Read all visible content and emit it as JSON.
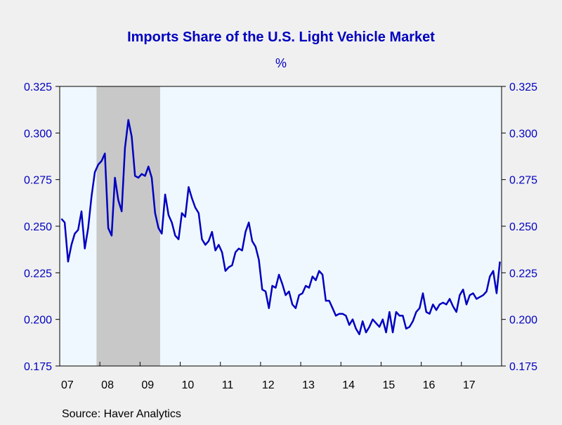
{
  "colors": {
    "background": "#f0f0f0",
    "plot_background": "#f0f8ff",
    "line": "#0000c0",
    "recession": "#c8c8c8",
    "title": "#0000c0",
    "axis_text": "#0000c0",
    "year_text": "#000000"
  },
  "footer": {
    "source": "Source:  Haver Analytics"
  },
  "chart_data": {
    "type": "line",
    "title": "Imports Share of the U.S. Light Vehicle Market",
    "subtitle": "%",
    "ylim": [
      0.175,
      0.325
    ],
    "y_ticks": [
      0.175,
      0.2,
      0.225,
      0.25,
      0.275,
      0.3,
      0.325
    ],
    "y_tick_labels": [
      "0.175",
      "0.200",
      "0.225",
      "0.250",
      "0.275",
      "0.300",
      "0.325"
    ],
    "x_range": [
      "2007-01",
      "2017-12"
    ],
    "x_tick_labels": [
      "07",
      "08",
      "09",
      "10",
      "11",
      "12",
      "13",
      "14",
      "15",
      "16",
      "17"
    ],
    "grid": false,
    "shaded_periods": [
      {
        "start": "2007-12",
        "end": "2009-06"
      }
    ],
    "series": [
      {
        "x": [
          "2007-01",
          "2007-02",
          "2007-03",
          "2007-04",
          "2007-05",
          "2007-06",
          "2007-07",
          "2007-08",
          "2007-09",
          "2007-10",
          "2007-11",
          "2007-12",
          "2008-01",
          "2008-02",
          "2008-03",
          "2008-04",
          "2008-05",
          "2008-06",
          "2008-07",
          "2008-08",
          "2008-09",
          "2008-10",
          "2008-11",
          "2008-12",
          "2009-01",
          "2009-02",
          "2009-03",
          "2009-04",
          "2009-05",
          "2009-06",
          "2009-07",
          "2009-08",
          "2009-09",
          "2009-10",
          "2009-11",
          "2009-12",
          "2010-01",
          "2010-02",
          "2010-03",
          "2010-04",
          "2010-05",
          "2010-06",
          "2010-07",
          "2010-08",
          "2010-09",
          "2010-10",
          "2010-11",
          "2010-12",
          "2011-01",
          "2011-02",
          "2011-03",
          "2011-04",
          "2011-05",
          "2011-06",
          "2011-07",
          "2011-08",
          "2011-09",
          "2011-10",
          "2011-11",
          "2011-12",
          "2012-01",
          "2012-02",
          "2012-03",
          "2012-04",
          "2012-05",
          "2012-06",
          "2012-07",
          "2012-08",
          "2012-09",
          "2012-10",
          "2012-11",
          "2012-12",
          "2013-01",
          "2013-02",
          "2013-03",
          "2013-04",
          "2013-05",
          "2013-06",
          "2013-07",
          "2013-08",
          "2013-09",
          "2013-10",
          "2013-11",
          "2013-12",
          "2014-01",
          "2014-02",
          "2014-03",
          "2014-04",
          "2014-05",
          "2014-06",
          "2014-07",
          "2014-08",
          "2014-09",
          "2014-10",
          "2014-11",
          "2014-12",
          "2015-01",
          "2015-02",
          "2015-03",
          "2015-04",
          "2015-05",
          "2015-06",
          "2015-07",
          "2015-08",
          "2015-09",
          "2015-10",
          "2015-11",
          "2015-12",
          "2016-01",
          "2016-02",
          "2016-03",
          "2016-04",
          "2016-05",
          "2016-06",
          "2016-07",
          "2016-08",
          "2016-09",
          "2016-10",
          "2016-11",
          "2016-12",
          "2017-01",
          "2017-02",
          "2017-03",
          "2017-04",
          "2017-05",
          "2017-06",
          "2017-07",
          "2017-08",
          "2017-09",
          "2017-10",
          "2017-11",
          "2017-12"
        ],
        "values": [
          0.254,
          0.252,
          0.231,
          0.24,
          0.246,
          0.248,
          0.258,
          0.238,
          0.249,
          0.266,
          0.279,
          0.283,
          0.285,
          0.289,
          0.249,
          0.245,
          0.276,
          0.264,
          0.258,
          0.292,
          0.307,
          0.298,
          0.277,
          0.276,
          0.278,
          0.277,
          0.282,
          0.276,
          0.257,
          0.249,
          0.246,
          0.267,
          0.256,
          0.252,
          0.245,
          0.243,
          0.257,
          0.255,
          0.271,
          0.265,
          0.26,
          0.257,
          0.243,
          0.24,
          0.242,
          0.247,
          0.237,
          0.24,
          0.236,
          0.226,
          0.228,
          0.229,
          0.236,
          0.238,
          0.237,
          0.247,
          0.252,
          0.242,
          0.239,
          0.232,
          0.216,
          0.215,
          0.206,
          0.218,
          0.217,
          0.224,
          0.219,
          0.213,
          0.215,
          0.208,
          0.206,
          0.213,
          0.214,
          0.218,
          0.217,
          0.223,
          0.221,
          0.226,
          0.224,
          0.21,
          0.21,
          0.206,
          0.202,
          0.203,
          0.203,
          0.202,
          0.197,
          0.2,
          0.195,
          0.192,
          0.199,
          0.193,
          0.196,
          0.2,
          0.198,
          0.196,
          0.2,
          0.193,
          0.204,
          0.193,
          0.204,
          0.202,
          0.202,
          0.195,
          0.196,
          0.199,
          0.204,
          0.206,
          0.214,
          0.204,
          0.203,
          0.208,
          0.205,
          0.208,
          0.209,
          0.208,
          0.211,
          0.207,
          0.204,
          0.213,
          0.216,
          0.208,
          0.213,
          0.214,
          0.211,
          0.212,
          0.213,
          0.215,
          0.223,
          0.226,
          0.214,
          0.231
        ]
      }
    ]
  }
}
